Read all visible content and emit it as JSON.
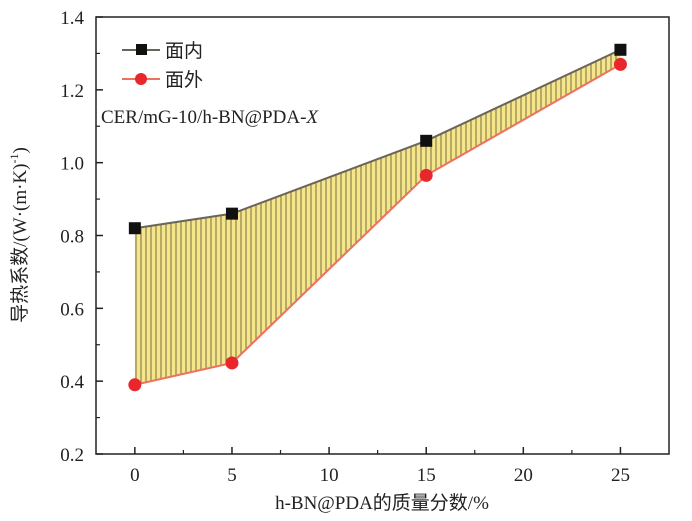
{
  "chart_data": {
    "type": "line",
    "title": "",
    "annotation": "CER/mG-10/h-BN@PDA-",
    "annotation_italic": "X",
    "xlabel": "h-BN@PDA的质量分数/%",
    "ylabel": "导热系数/(W·(m·K)",
    "ylabel_sup": "-1",
    "ylabel_end": ")",
    "xlim": [
      -2,
      27.5
    ],
    "ylim": [
      0.2,
      1.4
    ],
    "xticks": [
      0,
      5,
      10,
      15,
      20,
      25
    ],
    "yticks": [
      0.2,
      0.4,
      0.6,
      0.8,
      1.0,
      1.2,
      1.4
    ],
    "ytick_labels": [
      "0.2",
      "0.4",
      "0.6",
      "0.8",
      "1.0",
      "1.2",
      "1.4"
    ],
    "grid": false,
    "legend_position": "top-left",
    "x": [
      0,
      5,
      15,
      25
    ],
    "series": [
      {
        "name": "面内",
        "values": [
          0.82,
          0.86,
          1.06,
          1.31
        ],
        "color": "#111111",
        "line_color": "#6b6458",
        "marker": "square"
      },
      {
        "name": "面外",
        "values": [
          0.39,
          0.45,
          0.965,
          1.27
        ],
        "color": "#e8262b",
        "line_color": "#f07060",
        "marker": "circle"
      }
    ],
    "fill_between": {
      "color": "#f5e68a",
      "hatch_color": "#6b6040"
    }
  }
}
